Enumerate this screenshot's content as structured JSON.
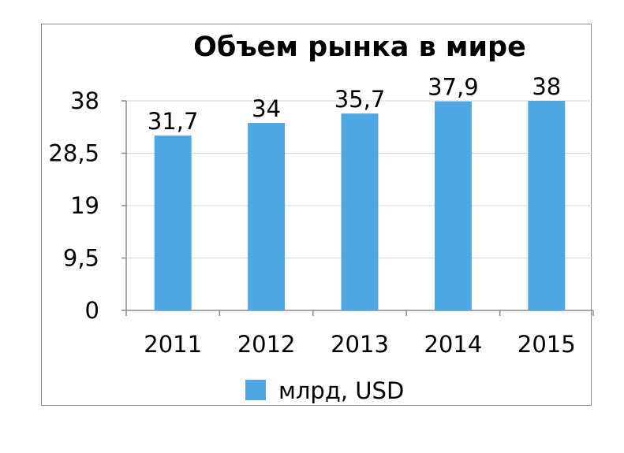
{
  "chart_data": {
    "type": "bar",
    "title": "Объем рынка в мире",
    "categories": [
      "2011",
      "2012",
      "2013",
      "2014",
      "2015"
    ],
    "series": [
      {
        "name": "млрд, USD",
        "values": [
          31.7,
          34,
          35.7,
          37.9,
          38
        ],
        "data_labels": [
          "31,7",
          "34",
          "35,7",
          "37,9",
          "38"
        ],
        "color": "#4fa8e3"
      }
    ],
    "y_ticks": [
      "0",
      "9,5",
      "19",
      "28,5",
      "38"
    ],
    "y_tick_values": [
      0,
      9.5,
      19,
      28.5,
      38
    ],
    "ylim": [
      0,
      38
    ],
    "grid": true,
    "legend_position": "bottom"
  }
}
